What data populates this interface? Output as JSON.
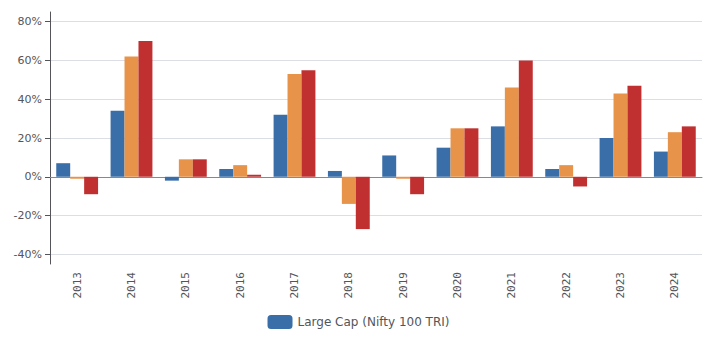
{
  "chart_data": {
    "type": "bar",
    "categories": [
      "2013",
      "2014",
      "2015",
      "2016",
      "2017",
      "2018",
      "2019",
      "2020",
      "2021",
      "2022",
      "2023",
      "2024"
    ],
    "series": [
      {
        "name": "Large Cap (Nifty 100 TRI)",
        "color": "#3A6EA8",
        "values": [
          7,
          34,
          -2,
          4,
          32,
          3,
          11,
          15,
          26,
          4,
          20,
          13
        ]
      },
      {
        "color": "#E8934A",
        "values": [
          -1,
          62,
          9,
          6,
          53,
          -14,
          -1,
          25,
          46,
          6,
          43,
          23
        ]
      },
      {
        "color": "#C03030",
        "values": [
          -9,
          70,
          9,
          1,
          55,
          -27,
          -9,
          25,
          60,
          -5,
          47,
          26
        ]
      }
    ],
    "ylim": [
      -45,
      85
    ],
    "yticks": [
      {
        "value": -40,
        "label": "-40%"
      },
      {
        "value": -20,
        "label": "-20%"
      },
      {
        "value": 0,
        "label": "0%"
      },
      {
        "value": 20,
        "label": "20%"
      },
      {
        "value": 40,
        "label": "40%"
      },
      {
        "value": 60,
        "label": "60%"
      },
      {
        "value": 80,
        "label": "80%"
      }
    ],
    "grid": true,
    "legend": "bottom"
  }
}
